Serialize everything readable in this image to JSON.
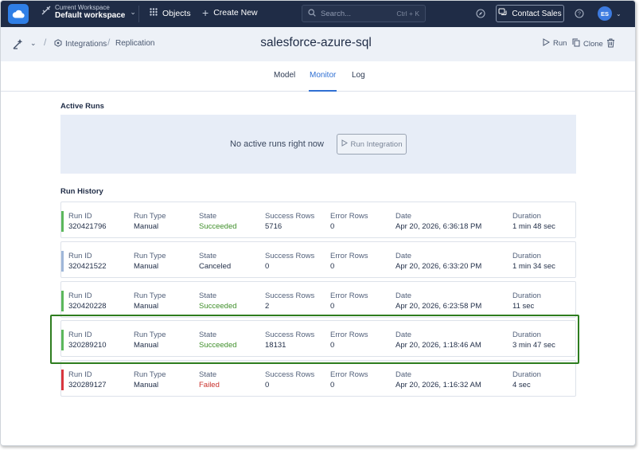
{
  "topbar": {
    "workspace_caption": "Current Workspace",
    "workspace_name": "Default workspace",
    "objects_label": "Objects",
    "create_new_label": "Create New",
    "search_placeholder": "Search...",
    "search_shortcut": "Ctrl + K",
    "contact_sales_label": "Contact Sales",
    "avatar_initials": "ES"
  },
  "header": {
    "breadcrumb_integrations": "Integrations",
    "breadcrumb_replication": "Replication",
    "title": "salesforce-azure-sql",
    "run_label": "Run",
    "clone_label": "Clone"
  },
  "tabs": [
    {
      "label": "Model",
      "active": false
    },
    {
      "label": "Monitor",
      "active": true
    },
    {
      "label": "Log",
      "active": false
    }
  ],
  "active_runs": {
    "title": "Active Runs",
    "empty_text": "No active runs right now",
    "button_label": "Run Integration"
  },
  "run_history": {
    "title": "Run History",
    "columns": {
      "run_id": "Run ID",
      "run_type": "Run Type",
      "state": "State",
      "success_rows": "Success Rows",
      "error_rows": "Error Rows",
      "date": "Date",
      "duration": "Duration"
    },
    "runs": [
      {
        "run_id": "320421796",
        "run_type": "Manual",
        "state": "Succeeded",
        "success_rows": "5716",
        "error_rows": "0",
        "date": "Apr 20, 2026, 6:36:18 PM",
        "duration": "1 min 48 sec",
        "status_color": "#5cb85c"
      },
      {
        "run_id": "320421522",
        "run_type": "Manual",
        "state": "Canceled",
        "success_rows": "0",
        "error_rows": "0",
        "date": "Apr 20, 2026, 6:33:20 PM",
        "duration": "1 min 34 sec",
        "status_color": "#9fb7d9"
      },
      {
        "run_id": "320420228",
        "run_type": "Manual",
        "state": "Succeeded",
        "success_rows": "2",
        "error_rows": "0",
        "date": "Apr 20, 2026, 6:23:58 PM",
        "duration": "11 sec",
        "status_color": "#5cb85c"
      },
      {
        "run_id": "320289210",
        "run_type": "Manual",
        "state": "Succeeded",
        "success_rows": "18131",
        "error_rows": "0",
        "date": "Apr 20, 2026, 1:18:46 AM",
        "duration": "3 min 47 sec",
        "status_color": "#5cb85c"
      },
      {
        "run_id": "320289127",
        "run_type": "Manual",
        "state": "Failed",
        "success_rows": "0",
        "error_rows": "0",
        "date": "Apr 20, 2026, 1:16:32 AM",
        "duration": "4 sec",
        "status_color": "#d9363e"
      }
    ]
  },
  "colors": {
    "topbar_bg": "#1f2c46",
    "accent": "#2f6fd3",
    "succeeded": "#3f8f2a",
    "failed": "#c9302c",
    "highlight_border": "#2e7d1f"
  }
}
